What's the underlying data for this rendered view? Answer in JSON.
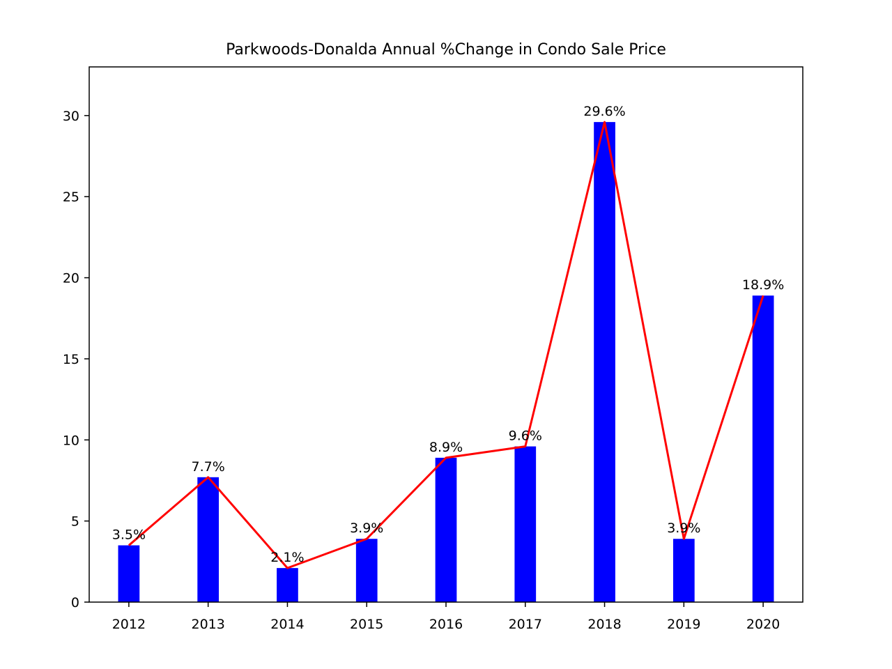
{
  "chart_data": {
    "type": "bar",
    "title": "Parkwoods-Donalda Annual %Change in Condo Sale Price",
    "xlabel": "",
    "ylabel": "",
    "categories": [
      "2012",
      "2013",
      "2014",
      "2015",
      "2016",
      "2017",
      "2018",
      "2019",
      "2020"
    ],
    "values": [
      3.5,
      7.7,
      2.1,
      3.9,
      8.9,
      9.6,
      29.6,
      3.9,
      18.9
    ],
    "data_labels": [
      "3.5%",
      "7.7%",
      "2.1%",
      "3.9%",
      "8.9%",
      "9.6%",
      "29.6%",
      "3.9%",
      "18.9%"
    ],
    "line_values": [
      3.5,
      7.7,
      2.1,
      3.9,
      8.9,
      9.6,
      29.6,
      3.9,
      18.9
    ],
    "ylim": [
      0,
      33
    ],
    "yticks": [
      0,
      5,
      10,
      15,
      20,
      25,
      30
    ],
    "grid": false,
    "bar_color": "#0000ff",
    "line_color": "#ff0000"
  }
}
